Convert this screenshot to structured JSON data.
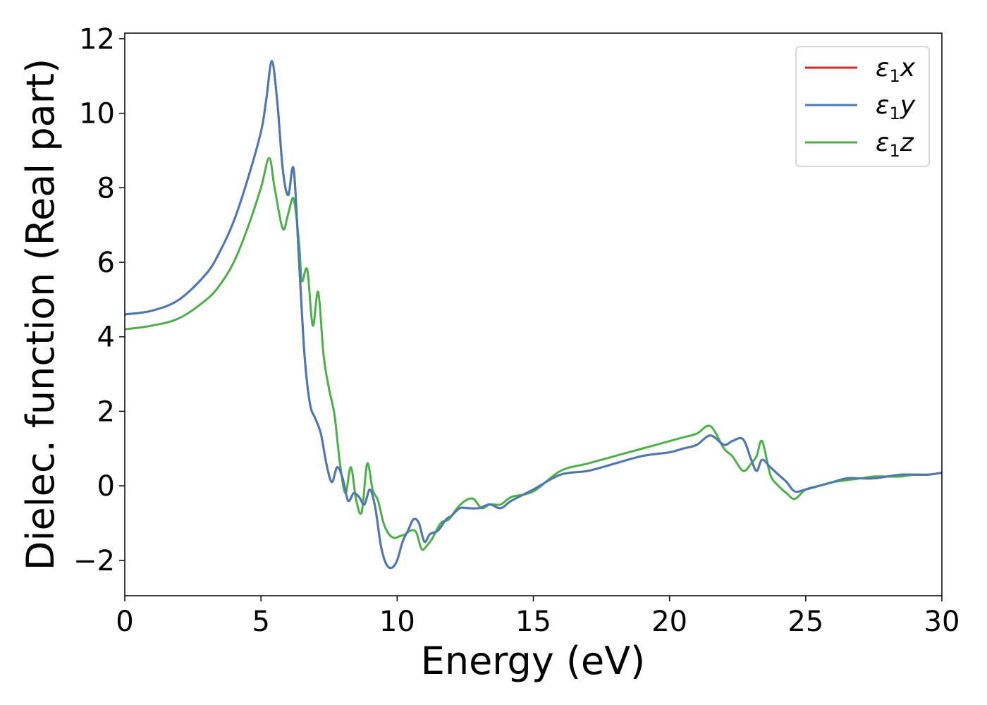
{
  "chart_data": {
    "type": "line",
    "xlabel": "Energy (eV)",
    "ylabel": "Dielec. function (Real part)",
    "xlim": [
      0,
      30
    ],
    "ylim": [
      -2.95,
      12.15
    ],
    "xticks": [
      0,
      5,
      10,
      15,
      20,
      25,
      30
    ],
    "yticks": [
      -2,
      0,
      2,
      4,
      6,
      8,
      10,
      12
    ],
    "xtick_labels": [
      "0",
      "5",
      "10",
      "15",
      "20",
      "25",
      "30"
    ],
    "ytick_labels": [
      "−2",
      "0",
      "2",
      "4",
      "6",
      "8",
      "10",
      "12"
    ],
    "grid": false,
    "legend_position": "top-right",
    "series": [
      {
        "name": "ε₁x",
        "name_main": "ε",
        "name_sub": "1",
        "name_var": "x",
        "color": "#d62728",
        "x": [
          0,
          1,
          2,
          3,
          3.5,
          4,
          4.5,
          5,
          5.2,
          5.4,
          5.6,
          5.8,
          6.0,
          6.2,
          6.4,
          6.6,
          6.8,
          7.0,
          7.2,
          7.4,
          7.6,
          7.8,
          8.0,
          8.2,
          8.4,
          8.6,
          8.8,
          9.0,
          9.2,
          9.4,
          9.6,
          9.8,
          10.0,
          10.2,
          10.4,
          10.6,
          10.8,
          11.0,
          11.2,
          11.5,
          11.8,
          12.0,
          12.3,
          12.6,
          13.0,
          13.4,
          13.8,
          14.2,
          15.0,
          16.0,
          17.0,
          18.0,
          19.0,
          20.0,
          20.5,
          21.0,
          21.5,
          22.0,
          22.3,
          22.7,
          23.0,
          23.2,
          23.4,
          23.7,
          24.0,
          24.3,
          24.6,
          25.0,
          25.5,
          26.0,
          26.5,
          27.0,
          27.5,
          28.0,
          28.5,
          29.0,
          29.5,
          30.0
        ],
        "values": [
          4.6,
          4.7,
          5.0,
          5.7,
          6.3,
          7.1,
          8.2,
          9.5,
          10.4,
          11.4,
          10.3,
          8.5,
          7.8,
          8.5,
          6.0,
          3.5,
          2.2,
          1.8,
          1.4,
          0.6,
          0.1,
          0.5,
          0.2,
          -0.4,
          -0.2,
          -0.3,
          -0.5,
          -0.1,
          -0.6,
          -1.6,
          -2.1,
          -2.2,
          -2.0,
          -1.5,
          -1.2,
          -0.9,
          -1.0,
          -1.5,
          -1.3,
          -1.2,
          -0.9,
          -0.8,
          -0.6,
          -0.6,
          -0.6,
          -0.5,
          -0.6,
          -0.4,
          -0.1,
          0.3,
          0.4,
          0.6,
          0.8,
          0.9,
          1.0,
          1.1,
          1.35,
          1.1,
          1.2,
          1.25,
          0.7,
          0.4,
          0.7,
          0.5,
          0.3,
          0.1,
          -0.15,
          -0.1,
          0.0,
          0.1,
          0.2,
          0.2,
          0.2,
          0.25,
          0.3,
          0.3,
          0.3,
          0.35
        ]
      },
      {
        "name": "ε₁y",
        "name_main": "ε",
        "name_sub": "1",
        "name_var": "y",
        "color": "#4a7ab3",
        "x": [
          0,
          1,
          2,
          3,
          3.5,
          4,
          4.5,
          5,
          5.2,
          5.4,
          5.6,
          5.8,
          6.0,
          6.2,
          6.4,
          6.6,
          6.8,
          7.0,
          7.2,
          7.4,
          7.6,
          7.8,
          8.0,
          8.2,
          8.4,
          8.6,
          8.8,
          9.0,
          9.2,
          9.4,
          9.6,
          9.8,
          10.0,
          10.2,
          10.4,
          10.6,
          10.8,
          11.0,
          11.2,
          11.5,
          11.8,
          12.0,
          12.3,
          12.6,
          13.0,
          13.4,
          13.8,
          14.2,
          15.0,
          16.0,
          17.0,
          18.0,
          19.0,
          20.0,
          20.5,
          21.0,
          21.5,
          22.0,
          22.3,
          22.7,
          23.0,
          23.2,
          23.4,
          23.7,
          24.0,
          24.3,
          24.6,
          25.0,
          25.5,
          26.0,
          26.5,
          27.0,
          27.5,
          28.0,
          28.5,
          29.0,
          29.5,
          30.0
        ],
        "values": [
          4.6,
          4.7,
          5.0,
          5.7,
          6.3,
          7.1,
          8.2,
          9.5,
          10.4,
          11.4,
          10.3,
          8.5,
          7.8,
          8.5,
          6.0,
          3.5,
          2.2,
          1.8,
          1.4,
          0.6,
          0.1,
          0.5,
          0.2,
          -0.4,
          -0.2,
          -0.3,
          -0.5,
          -0.1,
          -0.6,
          -1.6,
          -2.1,
          -2.2,
          -2.0,
          -1.5,
          -1.2,
          -0.9,
          -1.0,
          -1.5,
          -1.3,
          -1.2,
          -0.9,
          -0.8,
          -0.6,
          -0.6,
          -0.6,
          -0.5,
          -0.6,
          -0.4,
          -0.1,
          0.3,
          0.4,
          0.6,
          0.8,
          0.9,
          1.0,
          1.1,
          1.35,
          1.1,
          1.2,
          1.25,
          0.7,
          0.4,
          0.7,
          0.5,
          0.3,
          0.1,
          -0.15,
          -0.1,
          0.0,
          0.1,
          0.2,
          0.2,
          0.2,
          0.25,
          0.3,
          0.3,
          0.3,
          0.35
        ]
      },
      {
        "name": "ε₁z",
        "name_main": "ε",
        "name_sub": "1",
        "name_var": "z",
        "color": "#4daf4a",
        "x": [
          0,
          1,
          2,
          3,
          3.5,
          4,
          4.5,
          5,
          5.3,
          5.5,
          5.8,
          6.0,
          6.2,
          6.4,
          6.5,
          6.7,
          6.9,
          7.1,
          7.3,
          7.5,
          7.7,
          7.9,
          8.1,
          8.3,
          8.5,
          8.7,
          8.9,
          9.1,
          9.3,
          9.5,
          9.7,
          9.9,
          10.1,
          10.3,
          10.5,
          10.7,
          10.9,
          11.1,
          11.3,
          11.6,
          11.9,
          12.2,
          12.5,
          12.8,
          13.1,
          13.4,
          13.8,
          14.2,
          15.0,
          16.0,
          17.0,
          18.0,
          19.0,
          20.0,
          20.5,
          21.0,
          21.5,
          22.0,
          22.3,
          22.7,
          23.0,
          23.2,
          23.4,
          23.7,
          24.0,
          24.3,
          24.6,
          25.0,
          25.5,
          26.0,
          26.5,
          27.0,
          27.5,
          28.0,
          28.5,
          29.0,
          29.5,
          30.0
        ],
        "values": [
          4.2,
          4.3,
          4.5,
          5.0,
          5.4,
          6.0,
          6.9,
          8.0,
          8.8,
          8.0,
          6.9,
          7.3,
          7.7,
          6.5,
          5.5,
          5.8,
          4.3,
          5.2,
          3.5,
          2.6,
          1.9,
          0.6,
          -0.2,
          0.5,
          -0.4,
          -0.7,
          0.6,
          -0.1,
          -0.4,
          -1.0,
          -1.3,
          -1.4,
          -1.35,
          -1.3,
          -1.2,
          -1.25,
          -1.7,
          -1.6,
          -1.4,
          -1.0,
          -0.9,
          -0.6,
          -0.4,
          -0.35,
          -0.6,
          -0.5,
          -0.5,
          -0.3,
          -0.15,
          0.4,
          0.6,
          0.8,
          1.0,
          1.2,
          1.3,
          1.4,
          1.6,
          1.0,
          0.8,
          0.4,
          0.6,
          0.8,
          1.2,
          0.3,
          0.0,
          -0.2,
          -0.35,
          -0.1,
          0.0,
          0.1,
          0.15,
          0.2,
          0.25,
          0.25,
          0.25,
          0.3,
          0.3,
          0.35
        ]
      }
    ]
  }
}
